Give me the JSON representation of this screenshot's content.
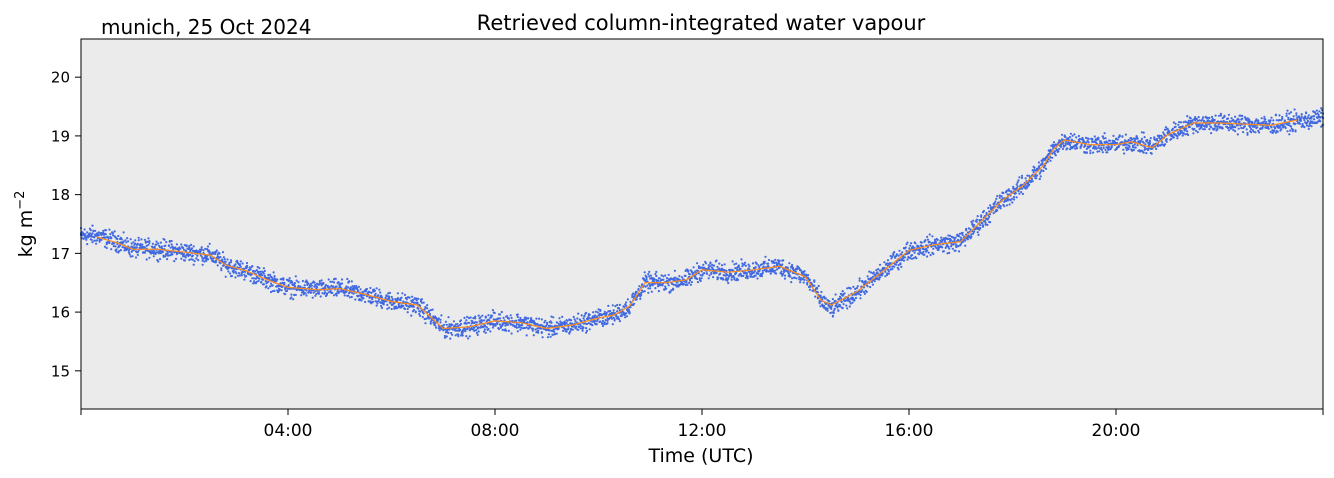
{
  "chart_data": {
    "type": "scatter",
    "title": "Retrieved column-integrated water vapour",
    "subtitle": "munich, 25 Oct 2024",
    "xlabel": "Time (UTC)",
    "ylabel": "kg m",
    "ylabel_exponent": "−2",
    "xlim_hours": [
      0,
      24
    ],
    "ylim": [
      14.35,
      20.65
    ],
    "x_ticks": [
      {
        "hour": 0,
        "label": ""
      },
      {
        "hour": 4,
        "label": "04:00"
      },
      {
        "hour": 8,
        "label": "08:00"
      },
      {
        "hour": 12,
        "label": "12:00"
      },
      {
        "hour": 16,
        "label": "16:00"
      },
      {
        "hour": 20,
        "label": "20:00"
      },
      {
        "hour": 24,
        "label": ""
      }
    ],
    "y_ticks": [
      15,
      16,
      17,
      18,
      19,
      20
    ],
    "grid": false,
    "background_color": "#ebebeb",
    "series": [
      {
        "role": "samples",
        "style": "dots",
        "color": "#4169e1",
        "scatter_half_width": 0.14,
        "x_hours": [
          0.0,
          0.3,
          0.7,
          1.0,
          1.5,
          2.0,
          2.5,
          2.8,
          3.2,
          3.6,
          4.0,
          4.6,
          5.0,
          5.5,
          6.0,
          6.5,
          7.0,
          7.5,
          8.0,
          8.5,
          9.0,
          9.5,
          10.0,
          10.3,
          10.6,
          10.9,
          11.3,
          11.7,
          12.0,
          12.5,
          13.0,
          13.5,
          14.0,
          14.3,
          14.5,
          15.0,
          15.5,
          16.0,
          16.5,
          17.0,
          17.4,
          17.8,
          18.2,
          18.6,
          18.8,
          19.0,
          19.5,
          20.0,
          20.3,
          20.7,
          21.0,
          21.5,
          22.0,
          22.5,
          23.0,
          23.5,
          24.0
        ],
        "values": [
          17.3,
          17.3,
          17.2,
          17.08,
          17.08,
          17.02,
          16.98,
          16.8,
          16.7,
          16.55,
          16.42,
          16.38,
          16.4,
          16.3,
          16.18,
          16.12,
          15.72,
          15.75,
          15.85,
          15.82,
          15.72,
          15.78,
          15.9,
          15.95,
          16.1,
          16.5,
          16.5,
          16.55,
          16.72,
          16.68,
          16.72,
          16.78,
          16.6,
          16.2,
          16.05,
          16.35,
          16.7,
          17.05,
          17.15,
          17.2,
          17.55,
          17.9,
          18.15,
          18.5,
          18.78,
          18.93,
          18.85,
          18.85,
          18.9,
          18.82,
          19.02,
          19.22,
          19.22,
          19.2,
          19.18,
          19.25,
          19.3
        ]
      },
      {
        "role": "smoothed",
        "style": "line",
        "color": "#ff8c1a",
        "x_hours": [
          0.3,
          0.7,
          1.0,
          1.5,
          2.0,
          2.5,
          2.8,
          3.2,
          3.6,
          4.0,
          4.6,
          5.0,
          5.5,
          6.0,
          6.5,
          7.0,
          7.5,
          8.0,
          8.5,
          9.0,
          9.5,
          10.0,
          10.3,
          10.6,
          10.9,
          11.3,
          11.7,
          12.0,
          12.5,
          13.0,
          13.5,
          14.0,
          14.3,
          14.5,
          15.0,
          15.5,
          16.0,
          16.5,
          17.0,
          17.4,
          17.8,
          18.2,
          18.6,
          18.8,
          19.0,
          19.5,
          20.0,
          20.3,
          20.7,
          21.0,
          21.5,
          22.0,
          22.5,
          23.0,
          23.5
        ],
        "values": [
          17.28,
          17.18,
          17.07,
          17.07,
          17.02,
          16.97,
          16.8,
          16.7,
          16.55,
          16.42,
          16.38,
          16.4,
          16.3,
          16.18,
          16.12,
          15.72,
          15.75,
          15.85,
          15.82,
          15.72,
          15.78,
          15.9,
          15.95,
          16.1,
          16.5,
          16.5,
          16.55,
          16.72,
          16.68,
          16.72,
          16.78,
          16.6,
          16.2,
          16.12,
          16.35,
          16.7,
          17.05,
          17.15,
          17.2,
          17.55,
          17.9,
          18.15,
          18.5,
          18.78,
          18.93,
          18.85,
          18.85,
          18.9,
          18.8,
          19.02,
          19.22,
          19.22,
          19.2,
          19.18,
          19.27
        ]
      }
    ]
  }
}
